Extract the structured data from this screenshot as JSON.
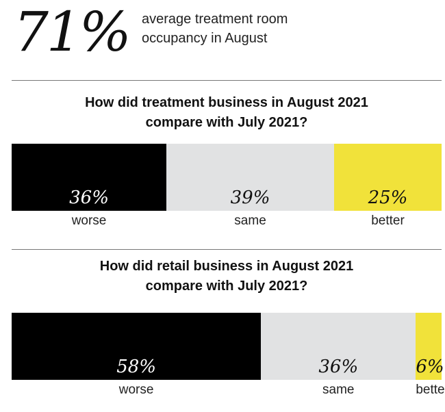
{
  "headline": {
    "stat": "71%",
    "description_line1": "average treatment room",
    "description_line2": "occupancy in August"
  },
  "colors": {
    "worse": "#000000",
    "same": "#e1e2e3",
    "better": "#f1e23a",
    "text_dark": "#111111",
    "text_light": "#ffffff",
    "rule": "#777777"
  },
  "chart_data": [
    {
      "type": "bar",
      "stacked": true,
      "orientation": "horizontal",
      "title_line1": "How did treatment business in August 2021",
      "title_line2": "compare with July 2021?",
      "categories": [
        "worse",
        "same",
        "better"
      ],
      "values": [
        36,
        39,
        25
      ],
      "value_labels": [
        "36%",
        "39%",
        "25%"
      ]
    },
    {
      "type": "bar",
      "stacked": true,
      "orientation": "horizontal",
      "title_line1": "How did retail business in August 2021",
      "title_line2": "compare with July 2021?",
      "categories": [
        "worse",
        "same",
        "better"
      ],
      "values": [
        58,
        36,
        6
      ],
      "value_labels": [
        "58%",
        "36%",
        "6%"
      ]
    }
  ]
}
